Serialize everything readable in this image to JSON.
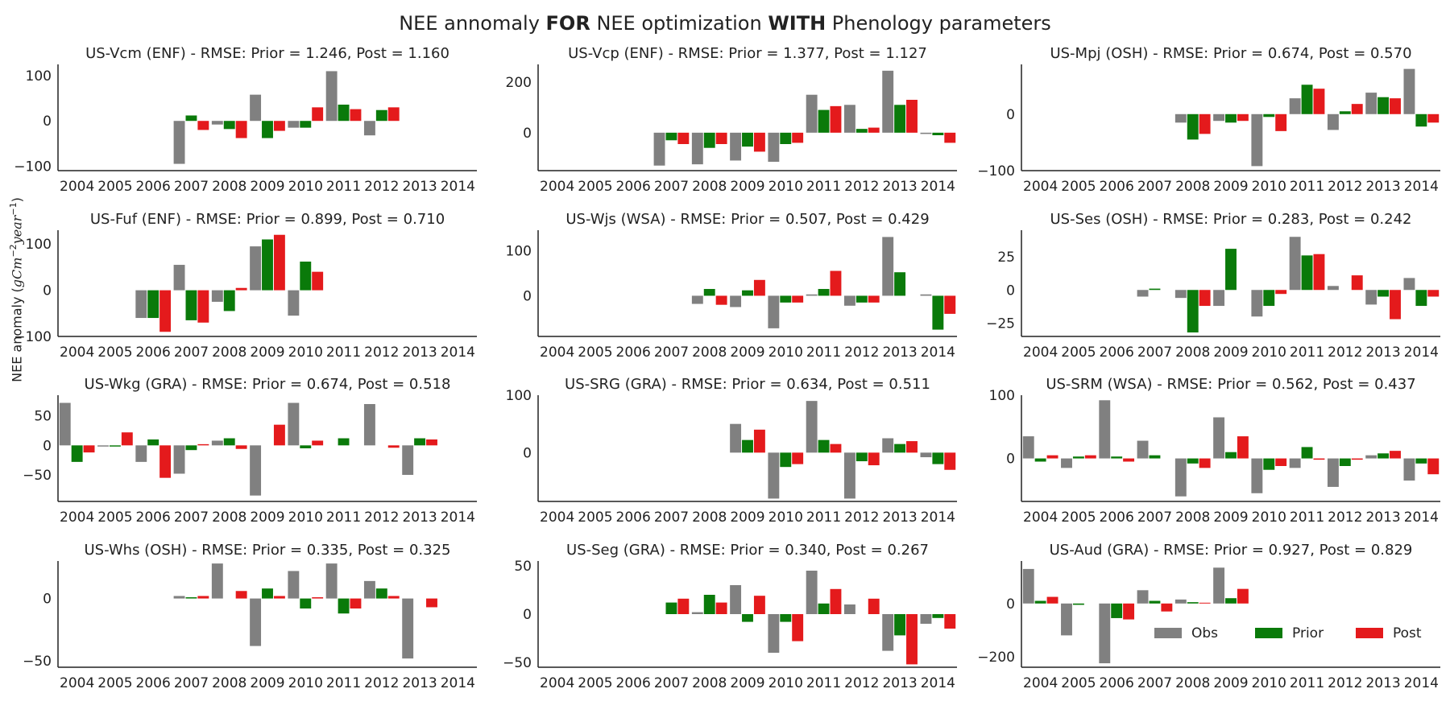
{
  "figure": {
    "title_parts": [
      "NEE annomaly ",
      "FOR",
      " NEE optimization ",
      "WITH",
      " Phenology parameters"
    ],
    "ylabel_text": "NEE anomaly (",
    "ylabel_unit_g": "gC",
    "ylabel_unit_m": "m",
    "ylabel_exp_m": "−2",
    "ylabel_unit_y": "year",
    "ylabel_exp_y": "−1",
    "ylabel_close": ")",
    "colors": {
      "Obs": "#808080",
      "Prior": "#0a7a0a",
      "Post": "#e41a1c"
    },
    "legend": {
      "labels": [
        "Obs",
        "Prior",
        "Post"
      ],
      "placement": "lower right of last panel"
    }
  },
  "chart_data": [
    {
      "type": "bar",
      "title": "US-Vcm (ENF) - RMSE: Prior = 1.246, Post = 1.160",
      "categories": [
        "2004",
        "2005",
        "2006",
        "2007",
        "2008",
        "2009",
        "2010",
        "2011",
        "2012",
        "2013",
        "2014"
      ],
      "ylim": [
        -110,
        125
      ],
      "yticks": [
        -100,
        0,
        100
      ],
      "series": [
        {
          "name": "Obs",
          "values": [
            null,
            null,
            null,
            -95,
            -8,
            58,
            -15,
            110,
            -32,
            null,
            null
          ]
        },
        {
          "name": "Prior",
          "values": [
            null,
            null,
            null,
            12,
            -18,
            -38,
            -15,
            36,
            24,
            null,
            null
          ]
        },
        {
          "name": "Post",
          "values": [
            null,
            null,
            null,
            -20,
            -38,
            -22,
            30,
            26,
            30,
            null,
            null
          ]
        }
      ]
    },
    {
      "type": "bar",
      "title": "US-Vcp (ENF) - RMSE: Prior = 1.377, Post = 1.127",
      "categories": [
        "2004",
        "2005",
        "2006",
        "2007",
        "2008",
        "2009",
        "2010",
        "2011",
        "2012",
        "2013",
        "2014"
      ],
      "ylim": [
        -150,
        270
      ],
      "yticks": [
        0,
        200
      ],
      "series": [
        {
          "name": "Obs",
          "values": [
            null,
            null,
            null,
            -130,
            -125,
            -110,
            -115,
            150,
            110,
            245,
            -5
          ]
        },
        {
          "name": "Prior",
          "values": [
            null,
            null,
            null,
            -30,
            -60,
            -55,
            -45,
            90,
            15,
            110,
            -10
          ]
        },
        {
          "name": "Post",
          "values": [
            null,
            null,
            null,
            -45,
            -45,
            -75,
            -40,
            105,
            20,
            130,
            -40
          ]
        }
      ]
    },
    {
      "type": "bar",
      "title": "US-Mpj (OSH) - RMSE: Prior = 0.674, Post = 0.570",
      "categories": [
        "2004",
        "2005",
        "2006",
        "2007",
        "2008",
        "2009",
        "2010",
        "2011",
        "2012",
        "2013",
        "2014"
      ],
      "ylim": [
        -100,
        88
      ],
      "yticks": [
        -100,
        0
      ],
      "series": [
        {
          "name": "Obs",
          "values": [
            null,
            null,
            null,
            null,
            -15,
            -12,
            -92,
            28,
            -28,
            38,
            80
          ]
        },
        {
          "name": "Prior",
          "values": [
            null,
            null,
            null,
            null,
            -45,
            -15,
            -5,
            52,
            5,
            30,
            -22
          ]
        },
        {
          "name": "Post",
          "values": [
            null,
            null,
            null,
            null,
            -35,
            -12,
            -30,
            45,
            18,
            28,
            -15
          ]
        }
      ]
    },
    {
      "type": "bar",
      "title": "US-Fuf (ENF) - RMSE: Prior = 0.899, Post = 0.710",
      "categories": [
        "2004",
        "2005",
        "2006",
        "2007",
        "2008",
        "2009",
        "2010",
        "2011",
        "2012",
        "2013",
        "2014"
      ],
      "ylim": [
        -100,
        130
      ],
      "yticks": [
        -100,
        0,
        100
      ],
      "series": [
        {
          "name": "Obs",
          "values": [
            null,
            null,
            -60,
            55,
            -25,
            95,
            -55,
            null,
            null,
            null,
            null
          ]
        },
        {
          "name": "Prior",
          "values": [
            null,
            null,
            -60,
            -65,
            -45,
            110,
            62,
            null,
            null,
            null,
            null
          ]
        },
        {
          "name": "Post",
          "values": [
            null,
            null,
            -90,
            -70,
            5,
            120,
            40,
            null,
            null,
            null,
            null
          ]
        }
      ]
    },
    {
      "type": "bar",
      "title": "US-Wjs (WSA) - RMSE: Prior = 0.507, Post = 0.429",
      "categories": [
        "2004",
        "2005",
        "2006",
        "2007",
        "2008",
        "2009",
        "2010",
        "2011",
        "2012",
        "2013",
        "2014"
      ],
      "ylim": [
        -90,
        145
      ],
      "yticks": [
        0,
        100
      ],
      "series": [
        {
          "name": "Obs",
          "values": [
            null,
            null,
            null,
            null,
            -18,
            -25,
            -72,
            3,
            -22,
            130,
            3
          ]
        },
        {
          "name": "Prior",
          "values": [
            null,
            null,
            null,
            null,
            15,
            12,
            -15,
            15,
            -15,
            52,
            -75
          ]
        },
        {
          "name": "Post",
          "values": [
            null,
            null,
            null,
            null,
            -20,
            35,
            -15,
            55,
            -15,
            null,
            -40
          ]
        }
      ]
    },
    {
      "type": "bar",
      "title": "US-Ses (OSH) - RMSE: Prior = 0.283, Post = 0.242",
      "categories": [
        "2004",
        "2005",
        "2006",
        "2007",
        "2008",
        "2009",
        "2010",
        "2011",
        "2012",
        "2013",
        "2014"
      ],
      "ylim": [
        -35,
        45
      ],
      "yticks": [
        -25,
        0,
        25
      ],
      "series": [
        {
          "name": "Obs",
          "values": [
            null,
            null,
            null,
            -5,
            -6,
            -12,
            -20,
            40,
            3,
            -11,
            9
          ]
        },
        {
          "name": "Prior",
          "values": [
            null,
            null,
            null,
            1,
            -32,
            31,
            -12,
            26,
            null,
            -5,
            -12
          ]
        },
        {
          "name": "Post",
          "values": [
            null,
            null,
            null,
            null,
            -12,
            null,
            -3,
            27,
            11,
            -22,
            -5
          ]
        }
      ]
    },
    {
      "type": "bar",
      "title": "US-Wkg (GRA) - RMSE: Prior = 0.674, Post = 0.518",
      "categories": [
        "2004",
        "2005",
        "2006",
        "2007",
        "2008",
        "2009",
        "2010",
        "2011",
        "2012",
        "2013",
        "2014"
      ],
      "ylim": [
        -95,
        85
      ],
      "yticks": [
        -50,
        0,
        50
      ],
      "series": [
        {
          "name": "Obs",
          "values": [
            72,
            -2,
            -28,
            -48,
            8,
            -85,
            72,
            null,
            70,
            -50,
            null
          ]
        },
        {
          "name": "Prior",
          "values": [
            -28,
            -2,
            10,
            -8,
            12,
            null,
            -5,
            12,
            null,
            12,
            null
          ]
        },
        {
          "name": "Post",
          "values": [
            -12,
            22,
            -55,
            2,
            -6,
            35,
            8,
            null,
            -4,
            10,
            null
          ]
        }
      ]
    },
    {
      "type": "bar",
      "title": "US-SRG (GRA) - RMSE: Prior = 0.634, Post = 0.511",
      "categories": [
        "2004",
        "2005",
        "2006",
        "2007",
        "2008",
        "2009",
        "2010",
        "2011",
        "2012",
        "2013",
        "2014"
      ],
      "ylim": [
        -85,
        100
      ],
      "yticks": [
        0,
        100
      ],
      "series": [
        {
          "name": "Obs",
          "values": [
            null,
            null,
            null,
            null,
            null,
            50,
            -80,
            90,
            -80,
            25,
            -8
          ]
        },
        {
          "name": "Prior",
          "values": [
            null,
            null,
            null,
            null,
            null,
            22,
            -25,
            22,
            -15,
            15,
            -20
          ]
        },
        {
          "name": "Post",
          "values": [
            null,
            null,
            null,
            null,
            null,
            40,
            -20,
            15,
            -22,
            20,
            -30
          ]
        }
      ]
    },
    {
      "type": "bar",
      "title": "US-SRM (WSA) - RMSE: Prior = 0.562, Post = 0.437",
      "categories": [
        "2004",
        "2005",
        "2006",
        "2007",
        "2008",
        "2009",
        "2010",
        "2011",
        "2012",
        "2013",
        "2014"
      ],
      "ylim": [
        -68,
        100
      ],
      "yticks": [
        0,
        100
      ],
      "series": [
        {
          "name": "Obs",
          "values": [
            35,
            -15,
            92,
            28,
            -60,
            65,
            -55,
            -15,
            -45,
            5,
            -35
          ]
        },
        {
          "name": "Prior",
          "values": [
            -5,
            3,
            3,
            5,
            -8,
            10,
            -18,
            18,
            -12,
            8,
            -8
          ]
        },
        {
          "name": "Post",
          "values": [
            5,
            5,
            -5,
            null,
            -15,
            35,
            -12,
            -2,
            -2,
            12,
            -25
          ]
        }
      ]
    },
    {
      "type": "bar",
      "title": "US-Whs (OSH) - RMSE: Prior = 0.335, Post = 0.325",
      "categories": [
        "2004",
        "2005",
        "2006",
        "2007",
        "2008",
        "2009",
        "2010",
        "2011",
        "2012",
        "2013",
        "2014"
      ],
      "ylim": [
        -55,
        30
      ],
      "yticks": [
        -50,
        0
      ],
      "series": [
        {
          "name": "Obs",
          "values": [
            null,
            null,
            null,
            2,
            28,
            -38,
            22,
            28,
            14,
            -48,
            null
          ]
        },
        {
          "name": "Prior",
          "values": [
            null,
            null,
            null,
            1,
            null,
            8,
            -8,
            -12,
            8,
            null,
            null
          ]
        },
        {
          "name": "Post",
          "values": [
            null,
            null,
            null,
            2,
            6,
            2,
            1,
            -8,
            2,
            -7,
            null
          ]
        }
      ]
    },
    {
      "type": "bar",
      "title": "US-Seg (GRA) - RMSE: Prior = 0.340, Post = 0.267",
      "categories": [
        "2004",
        "2005",
        "2006",
        "2007",
        "2008",
        "2009",
        "2010",
        "2011",
        "2012",
        "2013",
        "2014"
      ],
      "ylim": [
        -55,
        55
      ],
      "yticks": [
        -50,
        0,
        50
      ],
      "series": [
        {
          "name": "Obs",
          "values": [
            null,
            null,
            null,
            null,
            2,
            30,
            -40,
            45,
            10,
            -38,
            -10
          ]
        },
        {
          "name": "Prior",
          "values": [
            null,
            null,
            null,
            12,
            20,
            -8,
            -8,
            11,
            null,
            -22,
            -4
          ]
        },
        {
          "name": "Post",
          "values": [
            null,
            null,
            null,
            16,
            12,
            19,
            -28,
            26,
            16,
            -52,
            -15
          ]
        }
      ]
    },
    {
      "type": "bar",
      "title": "US-Aud (GRA) - RMSE: Prior = 0.927, Post = 0.829",
      "categories": [
        "2004",
        "2005",
        "2006",
        "2007",
        "2008",
        "2009",
        "2010",
        "2011",
        "2012",
        "2013",
        "2014"
      ],
      "ylim": [
        -240,
        160
      ],
      "yticks": [
        -200,
        0
      ],
      "series": [
        {
          "name": "Obs",
          "values": [
            130,
            -120,
            -225,
            50,
            15,
            135,
            null,
            null,
            null,
            null,
            null
          ]
        },
        {
          "name": "Prior",
          "values": [
            10,
            -5,
            -55,
            10,
            5,
            20,
            null,
            null,
            null,
            null,
            null
          ]
        },
        {
          "name": "Post",
          "values": [
            25,
            null,
            -60,
            -30,
            3,
            55,
            null,
            null,
            null,
            null,
            null
          ]
        }
      ]
    }
  ]
}
